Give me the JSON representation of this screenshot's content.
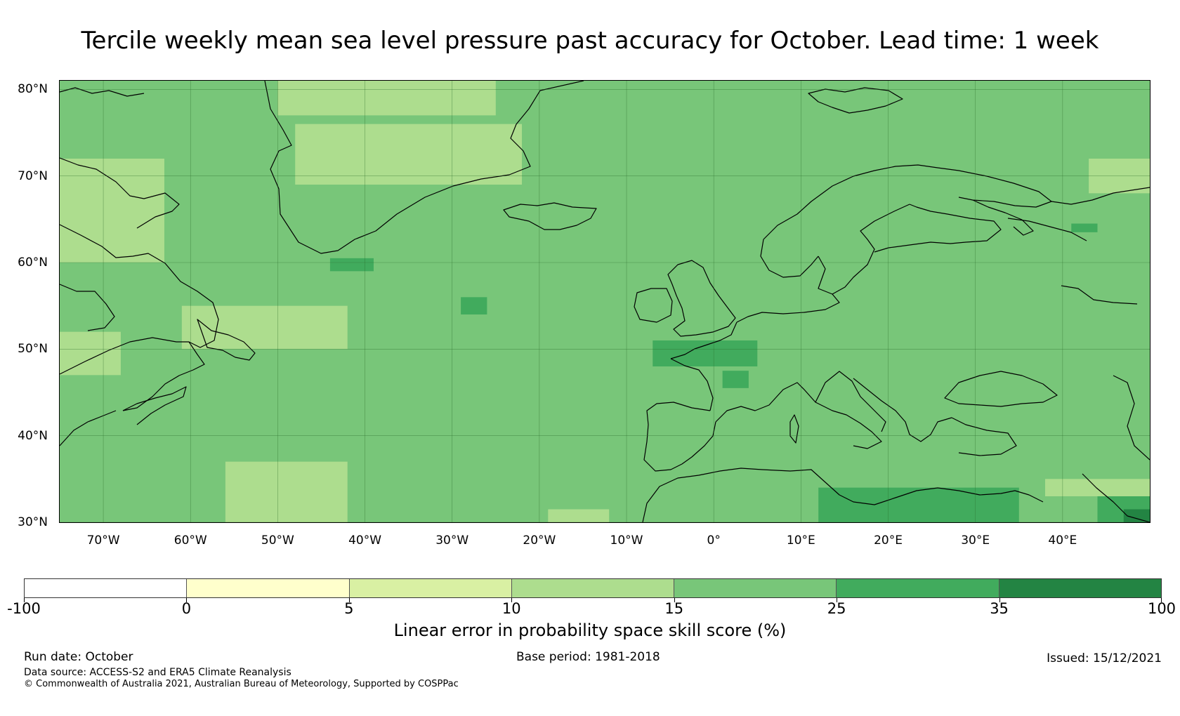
{
  "title": "Tercile weekly mean sea level pressure past accuracy for October. Lead time: 1 week",
  "map": {
    "extent": {
      "lon_min": -75,
      "lon_max": 50,
      "lat_min": 30,
      "lat_max": 81
    },
    "lat_labels": [
      "80°N",
      "70°N",
      "60°N",
      "50°N",
      "40°N",
      "30°N"
    ],
    "lat_values": [
      80,
      70,
      60,
      50,
      40,
      30
    ],
    "lon_labels": [
      "70°W",
      "60°W",
      "50°W",
      "40°W",
      "30°W",
      "20°W",
      "10°W",
      "0°",
      "10°E",
      "20°E",
      "30°E",
      "40°E"
    ],
    "lon_values": [
      -70,
      -60,
      -50,
      -40,
      -30,
      -20,
      -10,
      0,
      10,
      20,
      30,
      40
    ],
    "gridlines": true,
    "dominant_class": "15-25",
    "regions": [
      {
        "class": "10-15",
        "note": "northern Canada / Baffin",
        "lon": [
          -75,
          -63
        ],
        "lat": [
          60,
          72
        ]
      },
      {
        "class": "10-15",
        "note": "Labrador Sea coast",
        "lon": [
          -75,
          -68
        ],
        "lat": [
          47,
          52
        ]
      },
      {
        "class": "10-15",
        "note": "Newfoundland offshore",
        "lon": [
          -61,
          -42
        ],
        "lat": [
          50,
          55
        ]
      },
      {
        "class": "10-15",
        "note": "central Greenland",
        "lon": [
          -48,
          -22
        ],
        "lat": [
          69,
          76
        ]
      },
      {
        "class": "10-15",
        "note": "northern Greenland",
        "lon": [
          -50,
          -25
        ],
        "lat": [
          77,
          81
        ]
      },
      {
        "class": "10-15",
        "note": "subtropical Atlantic",
        "lon": [
          -56,
          -42
        ],
        "lat": [
          30,
          37
        ]
      },
      {
        "class": "10-15",
        "note": "off Morocco",
        "lon": [
          -19,
          -12
        ],
        "lat": [
          30,
          31.5
        ]
      },
      {
        "class": "10-15",
        "note": "Barents Sea",
        "lon": [
          43,
          50
        ],
        "lat": [
          68,
          72
        ]
      },
      {
        "class": "10-15",
        "note": "eastern Mediterranean",
        "lon": [
          38,
          50
        ],
        "lat": [
          33,
          35
        ]
      },
      {
        "class": "25-35",
        "note": "south of Greenland",
        "lon": [
          -44,
          -39
        ],
        "lat": [
          59,
          60.5
        ]
      },
      {
        "class": "25-35",
        "note": "mid Atlantic",
        "lon": [
          -29,
          -26
        ],
        "lat": [
          54,
          56
        ]
      },
      {
        "class": "25-35",
        "note": "western Europe",
        "lon": [
          -7,
          5
        ],
        "lat": [
          48,
          51
        ]
      },
      {
        "class": "25-35",
        "note": "France",
        "lon": [
          1,
          4
        ],
        "lat": [
          45.5,
          47.5
        ]
      },
      {
        "class": "25-35",
        "note": "North Africa",
        "lon": [
          12,
          35
        ],
        "lat": [
          30,
          34
        ]
      },
      {
        "class": "25-35",
        "note": "Kola / White Sea",
        "lon": [
          41,
          44
        ],
        "lat": [
          63.5,
          64.5
        ]
      },
      {
        "class": "25-35",
        "note": "south-east corner",
        "lon": [
          44,
          50
        ],
        "lat": [
          30,
          33
        ]
      },
      {
        "class": "35-100",
        "note": "south-east corner",
        "lon": [
          47,
          50
        ],
        "lat": [
          30,
          31.5
        ]
      }
    ]
  },
  "colorbar": {
    "labels": [
      "-100",
      "0",
      "5",
      "10",
      "15",
      "25",
      "35",
      "100"
    ],
    "colors": [
      "#ffffff",
      "#ffffcc",
      "#d9f0a3",
      "#addd8e",
      "#78c679",
      "#41ab5d",
      "#238443"
    ],
    "title": "Linear error in probability space skill score (%)"
  },
  "footer": {
    "run_date": "Run date: October",
    "base_period": "Base period: 1981-2018",
    "issued": "Issued: 15/12/2021",
    "data_source": "Data source: ACCESS-S2 and ERA5 Climate Reanalysis",
    "copyright": "© Commonwealth of Australia 2021, Australian Bureau of Meteorology, Supported by COSPPac"
  }
}
